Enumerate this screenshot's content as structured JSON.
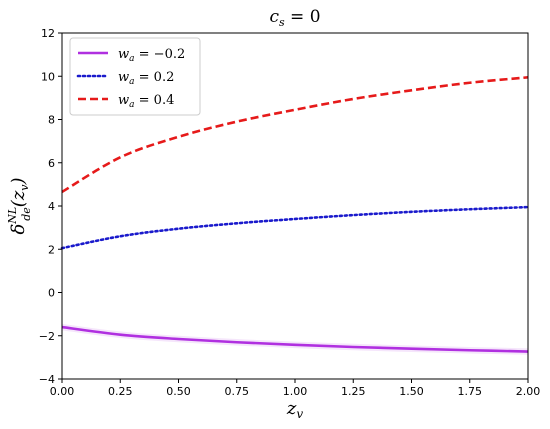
{
  "chart_data": {
    "type": "line",
    "title": "c_s = 0",
    "xlabel": "z_v",
    "ylabel": "δ_de^NL(z_v)",
    "xlim": [
      0.0,
      2.0
    ],
    "ylim": [
      -4,
      12
    ],
    "x_ticks": [
      "0.00",
      "0.25",
      "0.50",
      "0.75",
      "1.00",
      "1.25",
      "1.50",
      "1.75",
      "2.00"
    ],
    "y_ticks": [
      "−4",
      "−2",
      "0",
      "2",
      "4",
      "6",
      "8",
      "10",
      "12"
    ],
    "legend_position": "top-left",
    "x": [
      0.0,
      0.25,
      0.5,
      0.75,
      1.0,
      1.25,
      1.5,
      1.75,
      2.0
    ],
    "series": [
      {
        "name": "w_a = −0.2",
        "color": "#b030e0",
        "style": "solid",
        "values": [
          -1.6,
          -1.95,
          -2.15,
          -2.3,
          -2.42,
          -2.52,
          -2.6,
          -2.67,
          -2.73
        ],
        "band": 0.15
      },
      {
        "name": "w_a = 0.2",
        "color": "#1a1acc",
        "style": "dotted",
        "values": [
          2.05,
          2.6,
          2.95,
          3.2,
          3.4,
          3.58,
          3.73,
          3.85,
          3.95
        ]
      },
      {
        "name": "w_a = 0.4",
        "color": "#e61a1a",
        "style": "dashed",
        "values": [
          4.65,
          6.25,
          7.2,
          7.9,
          8.45,
          8.95,
          9.35,
          9.7,
          9.95
        ]
      }
    ]
  }
}
